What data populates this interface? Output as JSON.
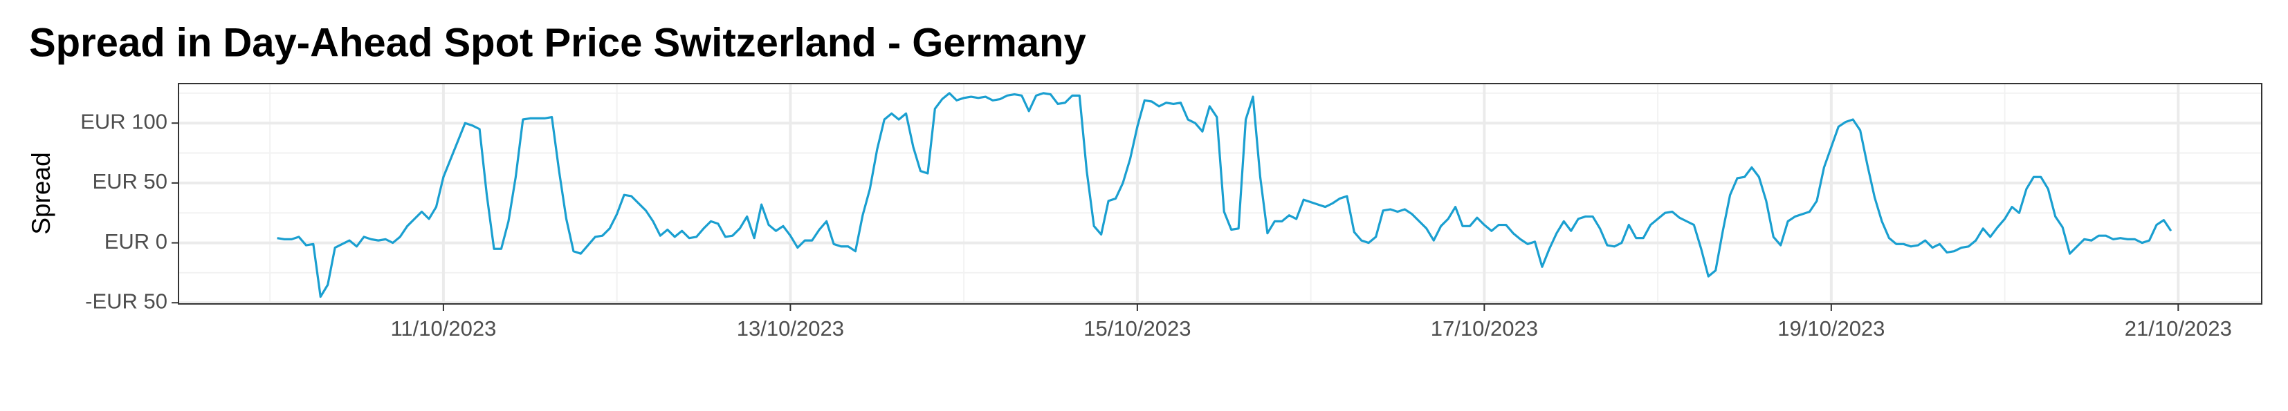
{
  "chart_data": {
    "type": "line",
    "title": "Spread in Day-Ahead Spot Price Switzerland - Germany",
    "y_label": "Spread",
    "color": "#1a9fd0",
    "grid": true,
    "xlim": [
      "2023-10-09T11:21",
      "2023-10-21T11:33"
    ],
    "xticks": [
      {
        "value": "2023-10-11T00:00",
        "label": "11/10/2023"
      },
      {
        "value": "2023-10-13T00:00",
        "label": "13/10/2023"
      },
      {
        "value": "2023-10-15T00:00",
        "label": "15/10/2023"
      },
      {
        "value": "2023-10-17T00:00",
        "label": "17/10/2023"
      },
      {
        "value": "2023-10-19T00:00",
        "label": "19/10/2023"
      },
      {
        "value": "2023-10-21T00:00",
        "label": "21/10/2023"
      }
    ],
    "xminor": [
      "2023-10-10T00:00",
      "2023-10-12T00:00",
      "2023-10-14T00:00",
      "2023-10-16T00:00",
      "2023-10-18T00:00",
      "2023-10-20T00:00"
    ],
    "ylim": [
      -51,
      133
    ],
    "yticks": [
      {
        "value": -50,
        "label": "-EUR 50"
      },
      {
        "value": 0,
        "label": "EUR 0"
      },
      {
        "value": 50,
        "label": "EUR 50"
      },
      {
        "value": 100,
        "label": "EUR 100"
      }
    ],
    "yminor": [
      -25,
      25,
      75,
      125
    ],
    "x": [
      "2023-10-10T01:00",
      "2023-10-10T02:00",
      "2023-10-10T03:00",
      "2023-10-10T04:00",
      "2023-10-10T05:00",
      "2023-10-10T06:00",
      "2023-10-10T07:00",
      "2023-10-10T08:00",
      "2023-10-10T09:00",
      "2023-10-10T10:00",
      "2023-10-10T11:00",
      "2023-10-10T12:00",
      "2023-10-10T13:00",
      "2023-10-10T14:00",
      "2023-10-10T15:00",
      "2023-10-10T16:00",
      "2023-10-10T17:00",
      "2023-10-10T18:00",
      "2023-10-10T19:00",
      "2023-10-10T20:00",
      "2023-10-10T21:00",
      "2023-10-10T22:00",
      "2023-10-10T23:00",
      "2023-10-11T00:00",
      "2023-10-11T01:00",
      "2023-10-11T02:00",
      "2023-10-11T03:00",
      "2023-10-11T04:00",
      "2023-10-11T05:00",
      "2023-10-11T06:00",
      "2023-10-11T07:00",
      "2023-10-11T08:00",
      "2023-10-11T09:00",
      "2023-10-11T10:00",
      "2023-10-11T11:00",
      "2023-10-11T12:00",
      "2023-10-11T13:00",
      "2023-10-11T14:00",
      "2023-10-11T15:00",
      "2023-10-11T16:00",
      "2023-10-11T17:00",
      "2023-10-11T18:00",
      "2023-10-11T19:00",
      "2023-10-11T20:00",
      "2023-10-11T21:00",
      "2023-10-11T22:00",
      "2023-10-11T23:00",
      "2023-10-12T00:00",
      "2023-10-12T01:00",
      "2023-10-12T02:00",
      "2023-10-12T03:00",
      "2023-10-12T04:00",
      "2023-10-12T05:00",
      "2023-10-12T06:00",
      "2023-10-12T07:00",
      "2023-10-12T08:00",
      "2023-10-12T09:00",
      "2023-10-12T10:00",
      "2023-10-12T11:00",
      "2023-10-12T12:00",
      "2023-10-12T13:00",
      "2023-10-12T14:00",
      "2023-10-12T15:00",
      "2023-10-12T16:00",
      "2023-10-12T17:00",
      "2023-10-12T18:00",
      "2023-10-12T19:00",
      "2023-10-12T20:00",
      "2023-10-12T21:00",
      "2023-10-12T22:00",
      "2023-10-12T23:00",
      "2023-10-13T00:00",
      "2023-10-13T01:00",
      "2023-10-13T02:00",
      "2023-10-13T03:00",
      "2023-10-13T04:00",
      "2023-10-13T05:00",
      "2023-10-13T06:00",
      "2023-10-13T07:00",
      "2023-10-13T08:00",
      "2023-10-13T09:00",
      "2023-10-13T10:00",
      "2023-10-13T11:00",
      "2023-10-13T12:00",
      "2023-10-13T13:00",
      "2023-10-13T14:00",
      "2023-10-13T15:00",
      "2023-10-13T16:00",
      "2023-10-13T17:00",
      "2023-10-13T18:00",
      "2023-10-13T19:00",
      "2023-10-13T20:00",
      "2023-10-13T21:00",
      "2023-10-13T22:00",
      "2023-10-13T23:00",
      "2023-10-14T00:00",
      "2023-10-14T01:00",
      "2023-10-14T02:00",
      "2023-10-14T03:00",
      "2023-10-14T04:00",
      "2023-10-14T05:00",
      "2023-10-14T06:00",
      "2023-10-14T07:00",
      "2023-10-14T08:00",
      "2023-10-14T09:00",
      "2023-10-14T10:00",
      "2023-10-14T11:00",
      "2023-10-14T12:00",
      "2023-10-14T13:00",
      "2023-10-14T14:00",
      "2023-10-14T15:00",
      "2023-10-14T16:00",
      "2023-10-14T17:00",
      "2023-10-14T18:00",
      "2023-10-14T19:00",
      "2023-10-14T20:00",
      "2023-10-14T21:00",
      "2023-10-14T22:00",
      "2023-10-14T23:00",
      "2023-10-15T00:00",
      "2023-10-15T01:00",
      "2023-10-15T02:00",
      "2023-10-15T03:00",
      "2023-10-15T04:00",
      "2023-10-15T05:00",
      "2023-10-15T06:00",
      "2023-10-15T07:00",
      "2023-10-15T08:00",
      "2023-10-15T09:00",
      "2023-10-15T10:00",
      "2023-10-15T11:00",
      "2023-10-15T12:00",
      "2023-10-15T13:00",
      "2023-10-15T14:00",
      "2023-10-15T15:00",
      "2023-10-15T16:00",
      "2023-10-15T17:00",
      "2023-10-15T18:00",
      "2023-10-15T19:00",
      "2023-10-15T20:00",
      "2023-10-15T21:00",
      "2023-10-15T22:00",
      "2023-10-15T23:00",
      "2023-10-16T00:00",
      "2023-10-16T01:00",
      "2023-10-16T02:00",
      "2023-10-16T03:00",
      "2023-10-16T04:00",
      "2023-10-16T05:00",
      "2023-10-16T06:00",
      "2023-10-16T07:00",
      "2023-10-16T08:00",
      "2023-10-16T09:00",
      "2023-10-16T10:00",
      "2023-10-16T11:00",
      "2023-10-16T12:00",
      "2023-10-16T13:00",
      "2023-10-16T14:00",
      "2023-10-16T15:00",
      "2023-10-16T16:00",
      "2023-10-16T17:00",
      "2023-10-16T18:00",
      "2023-10-16T19:00",
      "2023-10-16T20:00",
      "2023-10-16T21:00",
      "2023-10-16T22:00",
      "2023-10-16T23:00",
      "2023-10-17T00:00",
      "2023-10-17T01:00",
      "2023-10-17T02:00",
      "2023-10-17T03:00",
      "2023-10-17T04:00",
      "2023-10-17T05:00",
      "2023-10-17T06:00",
      "2023-10-17T07:00",
      "2023-10-17T08:00",
      "2023-10-17T09:00",
      "2023-10-17T10:00",
      "2023-10-17T11:00",
      "2023-10-17T12:00",
      "2023-10-17T13:00",
      "2023-10-17T14:00",
      "2023-10-17T15:00",
      "2023-10-17T16:00",
      "2023-10-17T17:00",
      "2023-10-17T18:00",
      "2023-10-17T19:00",
      "2023-10-17T20:00",
      "2023-10-17T21:00",
      "2023-10-17T22:00",
      "2023-10-17T23:00",
      "2023-10-18T00:00",
      "2023-10-18T01:00",
      "2023-10-18T02:00",
      "2023-10-18T03:00",
      "2023-10-18T04:00",
      "2023-10-18T05:00",
      "2023-10-18T06:00",
      "2023-10-18T07:00",
      "2023-10-18T08:00",
      "2023-10-18T09:00",
      "2023-10-18T10:00",
      "2023-10-18T11:00",
      "2023-10-18T12:00",
      "2023-10-18T13:00",
      "2023-10-18T14:00",
      "2023-10-18T15:00",
      "2023-10-18T16:00",
      "2023-10-18T17:00",
      "2023-10-18T18:00",
      "2023-10-18T19:00",
      "2023-10-18T20:00",
      "2023-10-18T21:00",
      "2023-10-18T22:00",
      "2023-10-18T23:00",
      "2023-10-19T00:00",
      "2023-10-19T01:00",
      "2023-10-19T02:00",
      "2023-10-19T03:00",
      "2023-10-19T04:00",
      "2023-10-19T05:00",
      "2023-10-19T06:00",
      "2023-10-19T07:00",
      "2023-10-19T08:00",
      "2023-10-19T09:00",
      "2023-10-19T10:00",
      "2023-10-19T11:00",
      "2023-10-19T12:00",
      "2023-10-19T13:00",
      "2023-10-19T14:00",
      "2023-10-19T15:00",
      "2023-10-19T16:00",
      "2023-10-19T17:00",
      "2023-10-19T18:00",
      "2023-10-19T19:00",
      "2023-10-19T20:00",
      "2023-10-19T21:00",
      "2023-10-19T22:00",
      "2023-10-19T23:00",
      "2023-10-20T00:00",
      "2023-10-20T01:00",
      "2023-10-20T02:00",
      "2023-10-20T03:00",
      "2023-10-20T04:00",
      "2023-10-20T05:00",
      "2023-10-20T06:00",
      "2023-10-20T07:00",
      "2023-10-20T08:00",
      "2023-10-20T09:00",
      "2023-10-20T10:00",
      "2023-10-20T11:00",
      "2023-10-20T12:00",
      "2023-10-20T13:00",
      "2023-10-20T14:00",
      "2023-10-20T15:00",
      "2023-10-20T16:00",
      "2023-10-20T17:00",
      "2023-10-20T18:00",
      "2023-10-20T19:00",
      "2023-10-20T20:00",
      "2023-10-20T21:00",
      "2023-10-20T22:00",
      "2023-10-20T23:00"
    ],
    "values": [
      4,
      3,
      3,
      5,
      -2,
      -1,
      -45,
      -35,
      -4,
      -1,
      2,
      -3,
      5,
      3,
      2,
      3,
      0,
      5,
      14,
      20,
      26,
      20,
      30,
      55,
      70,
      85,
      100,
      98,
      95,
      40,
      -5,
      -5,
      18,
      55,
      103,
      104,
      104,
      104,
      105,
      60,
      20,
      -7,
      -9,
      -2,
      5,
      6,
      12,
      24,
      40,
      39,
      33,
      27,
      18,
      6,
      11,
      5,
      10,
      4,
      5,
      12,
      18,
      16,
      5,
      6,
      12,
      22,
      4,
      32,
      15,
      10,
      14,
      6,
      -4,
      2,
      2,
      11,
      18,
      -1,
      -3,
      -3,
      -7,
      23,
      45,
      78,
      103,
      108,
      103,
      108,
      80,
      60,
      58,
      112,
      120,
      125,
      119,
      121,
      122,
      121,
      122,
      119,
      120,
      123,
      124,
      123,
      110,
      123,
      125,
      124,
      116,
      117,
      123,
      123,
      60,
      14,
      7,
      35,
      37,
      50,
      70,
      97,
      119,
      118,
      114,
      117,
      116,
      117,
      103,
      100,
      93,
      114,
      105,
      26,
      11,
      12,
      103,
      122,
      55,
      8,
      18,
      18,
      23,
      20,
      36,
      34,
      32,
      30,
      33,
      37,
      39,
      9,
      2,
      0,
      5,
      27,
      28,
      26,
      28,
      24,
      18,
      12,
      2,
      14,
      20,
      30,
      14,
      14,
      21,
      15,
      10,
      15,
      15,
      8,
      3,
      -1,
      1,
      -20,
      -5,
      8,
      18,
      10,
      20,
      22,
      22,
      12,
      -2,
      -3,
      0,
      15,
      4,
      4,
      15,
      20,
      25,
      26,
      21,
      18,
      15,
      -5,
      -28,
      -23,
      10,
      40,
      54,
      55,
      63,
      55,
      35,
      5,
      -2,
      18,
      22,
      24,
      26,
      35,
      63,
      80,
      97,
      101,
      103,
      94,
      65,
      38,
      18,
      4,
      -1,
      -1,
      -3,
      -2,
      2,
      -4,
      -1,
      -8,
      -7,
      -4,
      -3,
      2,
      12,
      5,
      13,
      20,
      30,
      25,
      45,
      55,
      55,
      45,
      22,
      13,
      -9,
      -3,
      3,
      2,
      6,
      6,
      3,
      4,
      3,
      3,
      0,
      2,
      15,
      19,
      10
    ]
  }
}
